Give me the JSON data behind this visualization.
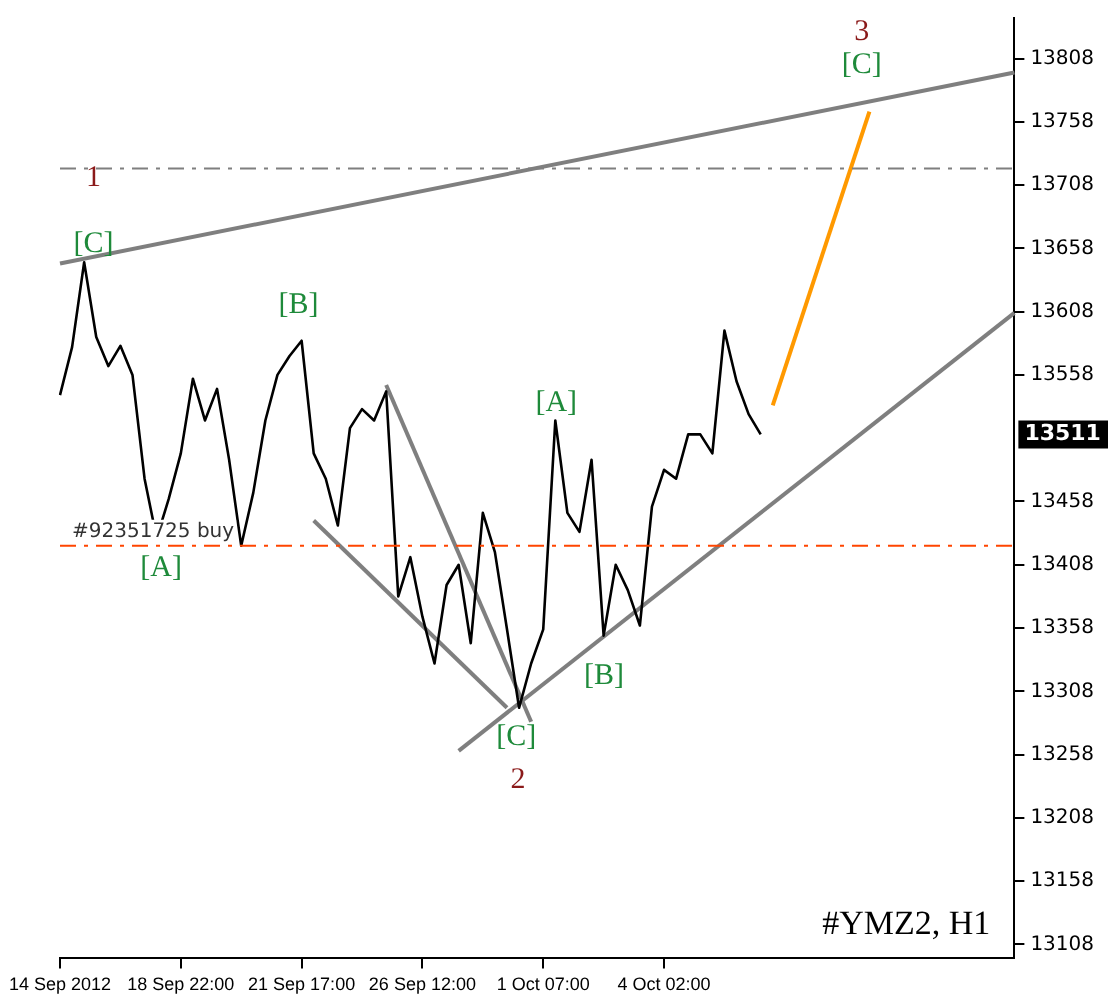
{
  "chart_data": {
    "type": "line",
    "title": "#YMZ2, H1",
    "categories": [
      "14 Sep 2012",
      null,
      null,
      null,
      null,
      null,
      null,
      null,
      null,
      null,
      "18 Sep 22:00",
      null,
      null,
      null,
      null,
      null,
      null,
      null,
      null,
      null,
      "21 Sep 17:00",
      null,
      null,
      null,
      null,
      null,
      null,
      null,
      null,
      null,
      "26 Sep 12:00",
      null,
      null,
      null,
      null,
      null,
      null,
      null,
      null,
      null,
      "1 Oct 07:00",
      null,
      null,
      null,
      null,
      null,
      null,
      null,
      null,
      null,
      "4 Oct 02:00",
      null,
      null,
      null,
      null,
      null,
      null,
      null,
      null,
      null,
      null,
      null,
      null,
      null,
      null,
      null,
      null,
      null,
      null,
      null,
      null,
      null,
      null,
      null,
      null,
      null,
      null,
      null,
      null,
      null
    ],
    "ylim": [
      13097,
      13840
    ],
    "yticks": [
      13108,
      13158,
      13208,
      13258,
      13308,
      13358,
      13408,
      13458,
      13558,
      13608,
      13658,
      13708,
      13758,
      13808
    ],
    "grid": false,
    "legend": false,
    "marker": "none",
    "series": [
      {
        "color": "#000000",
        "values": [
          13542,
          13580,
          13647,
          13588,
          13565,
          13581,
          13558,
          13476,
          13429,
          13460,
          13496,
          13555,
          13522,
          13547,
          13491,
          13423,
          13465,
          13522,
          13558,
          13573,
          13585,
          13496,
          13476,
          13439,
          13516,
          13531,
          13522,
          13545,
          13383,
          13414,
          13367,
          13330,
          13392,
          13408,
          13346,
          13449,
          13418,
          13357,
          13295,
          13330,
          13357,
          13522,
          13449,
          13434,
          13491,
          13352,
          13408,
          13388,
          13360,
          13454,
          13483,
          13476,
          13511,
          13511,
          13496,
          13593,
          13553,
          13527,
          13511,
          null,
          null,
          null,
          null,
          null,
          null,
          null,
          null,
          null,
          null,
          null,
          null,
          null,
          null,
          null,
          null,
          null,
          null,
          null,
          null,
          null
        ]
      },
      {
        "type": "line",
        "color": "#7f7f7f",
        "values": [
          13646,
          null,
          null,
          null,
          null,
          null,
          null,
          null,
          null,
          null,
          null,
          null,
          null,
          null,
          null,
          null,
          null,
          null,
          null,
          null,
          null,
          null,
          null,
          null,
          null,
          null,
          null,
          null,
          null,
          null,
          null,
          null,
          null,
          null,
          null,
          null,
          null,
          null,
          null,
          null,
          null,
          null,
          null,
          null,
          null,
          null,
          null,
          null,
          null,
          null,
          null,
          null,
          null,
          null,
          null,
          null,
          null,
          null,
          null,
          null,
          null,
          null,
          null,
          null,
          null,
          null,
          null,
          null,
          null,
          null,
          null,
          null,
          null,
          null,
          null,
          null,
          null,
          null,
          null,
          13797
        ]
      },
      {
        "type": "line",
        "color": "#7f7f7f",
        "values": [
          null,
          null,
          null,
          null,
          null,
          null,
          null,
          null,
          null,
          null,
          null,
          null,
          null,
          null,
          null,
          null,
          null,
          null,
          null,
          null,
          null,
          null,
          null,
          null,
          null,
          null,
          null,
          null,
          null,
          null,
          null,
          null,
          null,
          13261,
          null,
          null,
          null,
          null,
          null,
          null,
          null,
          null,
          null,
          null,
          null,
          null,
          null,
          null,
          null,
          null,
          null,
          null,
          null,
          null,
          null,
          null,
          null,
          null,
          null,
          null,
          null,
          null,
          null,
          null,
          null,
          null,
          null,
          null,
          null,
          null,
          null,
          null,
          null,
          null,
          null,
          null,
          null,
          null,
          null,
          13607
        ]
      },
      {
        "type": "line",
        "color": "#7f7f7f",
        "values": [
          null,
          null,
          null,
          null,
          null,
          null,
          null,
          null,
          null,
          null,
          null,
          null,
          null,
          null,
          null,
          null,
          null,
          null,
          null,
          null,
          null,
          null,
          null,
          null,
          null,
          null,
          null,
          13550,
          null,
          null,
          null,
          null,
          null,
          null,
          null,
          null,
          null,
          null,
          null,
          13284,
          null,
          null,
          null,
          null,
          null,
          null,
          null,
          null,
          null,
          null,
          null,
          null,
          null,
          null,
          null,
          null,
          null,
          null,
          null,
          null,
          null,
          null,
          null,
          null,
          null,
          null,
          null,
          null,
          null,
          null,
          null,
          null,
          null,
          null,
          null,
          null,
          null,
          null,
          null,
          null
        ]
      },
      {
        "type": "line",
        "color": "#7f7f7f",
        "values": [
          null,
          null,
          null,
          null,
          null,
          null,
          null,
          null,
          null,
          null,
          null,
          null,
          null,
          null,
          null,
          null,
          null,
          null,
          null,
          null,
          null,
          13443,
          null,
          null,
          null,
          null,
          null,
          null,
          null,
          null,
          null,
          null,
          null,
          null,
          null,
          null,
          null,
          13295,
          null,
          null,
          null,
          null,
          null,
          null,
          null,
          null,
          null,
          null,
          null,
          null,
          null,
          null,
          null,
          null,
          null,
          null,
          null,
          null,
          null,
          null,
          null,
          null,
          null,
          null,
          null,
          null,
          null,
          null,
          null,
          null,
          null,
          null,
          null,
          null,
          null,
          null,
          null,
          null,
          null,
          null
        ]
      },
      {
        "type": "line",
        "color": "#ff9900",
        "values": [
          null,
          null,
          null,
          null,
          null,
          null,
          null,
          null,
          null,
          null,
          null,
          null,
          null,
          null,
          null,
          null,
          null,
          null,
          null,
          null,
          null,
          null,
          null,
          null,
          null,
          null,
          null,
          null,
          null,
          null,
          null,
          null,
          null,
          null,
          null,
          null,
          null,
          null,
          null,
          null,
          null,
          null,
          null,
          null,
          null,
          null,
          null,
          null,
          null,
          null,
          null,
          null,
          null,
          null,
          null,
          null,
          null,
          null,
          null,
          13534,
          null,
          null,
          null,
          null,
          null,
          null,
          null,
          13766,
          null,
          null,
          null,
          null,
          null,
          null,
          null,
          null,
          null,
          null,
          null,
          null
        ]
      }
    ],
    "ref_lines": [
      {
        "axis": "y",
        "value": 13423,
        "label": "#92351725 buy",
        "color": "#ff4500",
        "line_style": "dashed"
      },
      {
        "axis": "y",
        "value": 13721,
        "color": "#7f7f7f",
        "line_style": "dashed"
      }
    ],
    "annotations": [
      "1",
      "[C]",
      "[A]",
      "[B]",
      "[C]",
      "2",
      "[A]",
      "[B]",
      "3",
      "[C]",
      "13511"
    ]
  }
}
